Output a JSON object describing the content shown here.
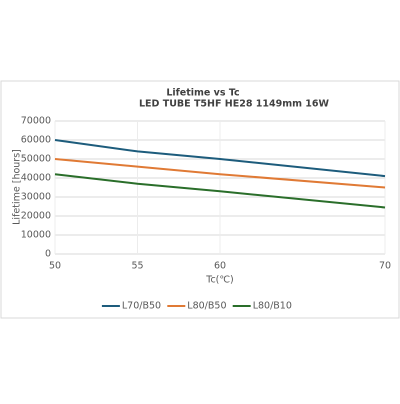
{
  "chart_data": {
    "type": "line",
    "title": "Lifetime vs Tc",
    "subtitle": "LED TUBE T5HF HE28 1149mm 16W",
    "x_label": "Tc(℃)",
    "y_label": "Lifetime [hours]",
    "x": [
      50,
      55,
      60,
      70
    ],
    "series": [
      {
        "name": "L70/B50",
        "color": "#1d5c7c",
        "values": [
          60000,
          54000,
          50000,
          41000
        ]
      },
      {
        "name": "L80/B50",
        "color": "#e07a35",
        "values": [
          50000,
          46000,
          42000,
          35000
        ]
      },
      {
        "name": "L80/B10",
        "color": "#2a6e2a",
        "values": [
          42000,
          37000,
          33000,
          24500
        ]
      }
    ],
    "xlim": [
      50,
      70
    ],
    "xticks": [
      50,
      55,
      60,
      70
    ],
    "ylim": [
      0,
      70000
    ],
    "yticks": [
      0,
      10000,
      20000,
      30000,
      40000,
      50000,
      60000,
      70000
    ],
    "grid": true,
    "legend": "bottom"
  }
}
